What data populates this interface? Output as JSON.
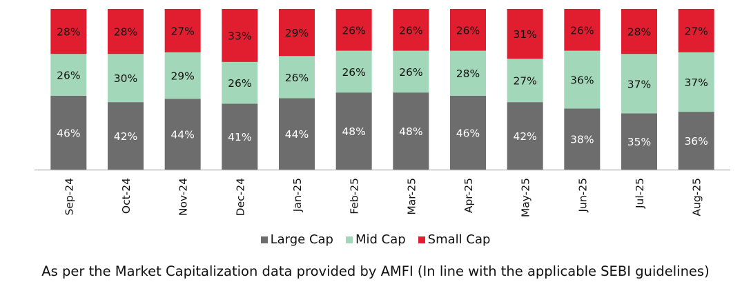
{
  "chart_data": {
    "type": "bar",
    "stacked": true,
    "categories": [
      "Sep-24",
      "Oct-24",
      "Nov-24",
      "Dec-24",
      "Jan-25",
      "Feb-25",
      "Mar-25",
      "Apr-25",
      "May-25",
      "Jun-25",
      "Jul-25",
      "Aug-25"
    ],
    "series": [
      {
        "name": "Large Cap",
        "color": "#6d6d6d",
        "values": [
          46,
          42,
          44,
          41,
          44,
          48,
          48,
          46,
          42,
          38,
          35,
          36
        ],
        "labels": [
          "46%",
          "42%",
          "44%",
          "41%",
          "44%",
          "48%",
          "48%",
          "46%",
          "42%",
          "38%",
          "35%",
          "36%"
        ]
      },
      {
        "name": "Mid Cap",
        "color": "#a2d7b9",
        "values": [
          26,
          30,
          29,
          26,
          26,
          26,
          26,
          28,
          27,
          36,
          37,
          37
        ],
        "labels": [
          "26%",
          "30%",
          "29%",
          "26%",
          "26%",
          "26%",
          "26%",
          "28%",
          "27%",
          "36%",
          "37%",
          "37%"
        ]
      },
      {
        "name": "Small Cap",
        "color": "#e01e2f",
        "values": [
          28,
          28,
          27,
          33,
          29,
          26,
          26,
          26,
          31,
          26,
          28,
          27
        ],
        "labels": [
          "28%",
          "28%",
          "27%",
          "33%",
          "29%",
          "26%",
          "26%",
          "26%",
          "31%",
          "26%",
          "28%",
          "27%"
        ]
      }
    ],
    "title": "",
    "xlabel": "",
    "ylabel": "",
    "grid": false,
    "legend_position": "bottom"
  },
  "footnote": "As per the Market Capitalization data provided by AMFI (In line with the applicable SEBI guidelines)"
}
